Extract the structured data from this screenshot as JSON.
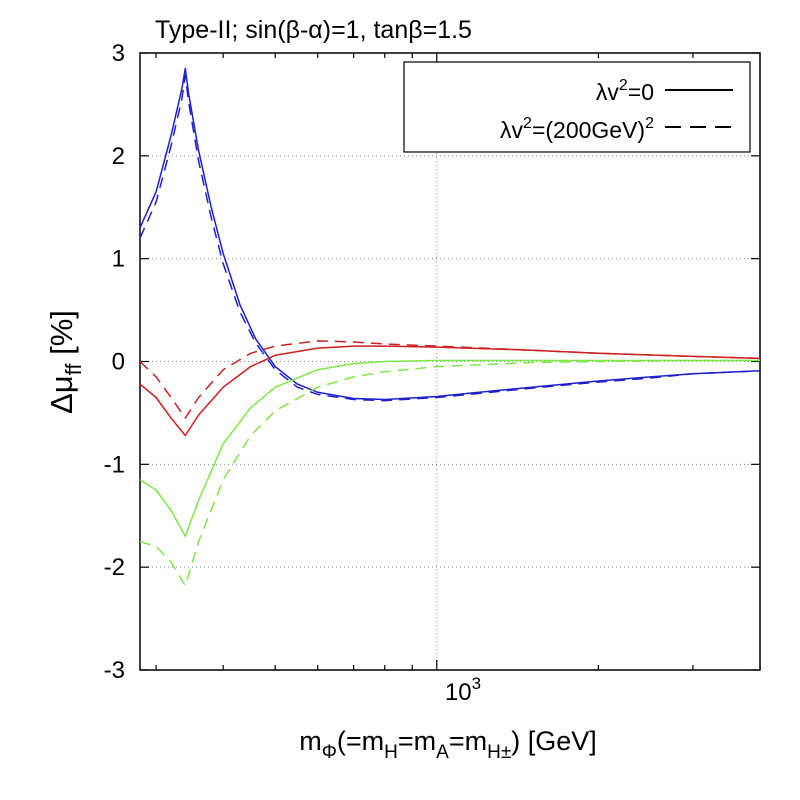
{
  "chart_data": {
    "type": "line",
    "title": "Type-II; sin(β-α)=1, tanβ=1.5",
    "xlabel": {
      "prefix": "m",
      "sub1": "Φ",
      "mid1": "(=m",
      "sub2": "H",
      "mid2": "=m",
      "sub3": "A",
      "mid3": "=m",
      "sub4": "H±",
      "suffix": ") [GeV]"
    },
    "ylabel": {
      "prefix": "Δμ",
      "sub": "ff",
      "suffix": " [%]"
    },
    "xscale": "log",
    "xlim": [
      280,
      4000
    ],
    "ylim": [
      -3,
      3
    ],
    "yticks": [
      "3",
      "2",
      "1",
      "0",
      "-1",
      "-2",
      "-3"
    ],
    "ytick_values": [
      3,
      2,
      1,
      0,
      -1,
      -2,
      -3
    ],
    "xtick": {
      "base": "10",
      "exp": "3",
      "value": 1000
    },
    "grid": true,
    "legend": {
      "position": "top-right",
      "entries": [
        {
          "base": "λv",
          "sup": "2",
          "rest": "=0",
          "sup2": "",
          "style": "solid"
        },
        {
          "base": "λv",
          "sup": "2",
          "rest": "=(200GeV)",
          "sup2": "2",
          "style": "dashed"
        }
      ]
    },
    "colors": {
      "blue": "#1f1fcc",
      "red": "#cc1f1f",
      "green": "#7ee84a",
      "grid": "#888888"
    },
    "series": [
      {
        "name": "blue λv²=0",
        "color": "blue",
        "style": "solid",
        "x": [
          280,
          300,
          320,
          335,
          340,
          345,
          360,
          380,
          400,
          430,
          460,
          500,
          550,
          600,
          700,
          800,
          1000,
          1200,
          1500,
          2000,
          2500,
          3000,
          4000
        ],
        "y": [
          1.3,
          1.65,
          2.2,
          2.65,
          2.85,
          2.6,
          2.05,
          1.5,
          1.05,
          0.55,
          0.22,
          -0.05,
          -0.22,
          -0.3,
          -0.36,
          -0.37,
          -0.34,
          -0.3,
          -0.25,
          -0.19,
          -0.15,
          -0.12,
          -0.09
        ]
      },
      {
        "name": "blue λv²=(200GeV)²",
        "color": "blue",
        "style": "dashed",
        "x": [
          280,
          300,
          320,
          335,
          340,
          345,
          360,
          380,
          400,
          430,
          460,
          500,
          550,
          600,
          700,
          800,
          1000,
          1200,
          1500,
          2000,
          2500,
          3000,
          4000
        ],
        "y": [
          1.2,
          1.55,
          2.1,
          2.55,
          2.78,
          2.52,
          1.95,
          1.4,
          0.95,
          0.48,
          0.18,
          -0.08,
          -0.25,
          -0.32,
          -0.37,
          -0.38,
          -0.35,
          -0.31,
          -0.26,
          -0.2,
          -0.16,
          -0.12,
          -0.09
        ]
      },
      {
        "name": "red λv²=0",
        "color": "red",
        "style": "solid",
        "x": [
          280,
          300,
          320,
          340,
          360,
          400,
          450,
          500,
          600,
          700,
          800,
          1000,
          1500,
          2000,
          3000,
          4000
        ],
        "y": [
          -0.22,
          -0.35,
          -0.55,
          -0.72,
          -0.52,
          -0.25,
          -0.05,
          0.06,
          0.13,
          0.15,
          0.15,
          0.14,
          0.11,
          0.08,
          0.05,
          0.03
        ]
      },
      {
        "name": "red λv²=(200GeV)²",
        "color": "red",
        "style": "dashed",
        "x": [
          280,
          300,
          320,
          340,
          360,
          400,
          450,
          500,
          600,
          700,
          800,
          1000,
          1500,
          2000,
          3000,
          4000
        ],
        "y": [
          0.0,
          -0.15,
          -0.35,
          -0.55,
          -0.35,
          -0.08,
          0.08,
          0.15,
          0.2,
          0.19,
          0.17,
          0.15,
          0.11,
          0.08,
          0.05,
          0.03
        ]
      },
      {
        "name": "green λv²=0",
        "color": "green",
        "style": "solid",
        "x": [
          280,
          300,
          320,
          340,
          360,
          400,
          450,
          500,
          600,
          700,
          800,
          1000,
          1500,
          2000,
          3000,
          4000
        ],
        "y": [
          -1.15,
          -1.25,
          -1.45,
          -1.7,
          -1.35,
          -0.8,
          -0.45,
          -0.25,
          -0.08,
          -0.02,
          0.0,
          0.01,
          0.01,
          0.01,
          0.01,
          0.01
        ]
      },
      {
        "name": "green λv²=(200GeV)²",
        "color": "green",
        "style": "dashed",
        "x": [
          280,
          300,
          320,
          340,
          360,
          400,
          450,
          500,
          600,
          700,
          800,
          1000,
          1500,
          2000,
          3000,
          4000
        ],
        "y": [
          -1.75,
          -1.8,
          -1.95,
          -2.18,
          -1.75,
          -1.15,
          -0.72,
          -0.48,
          -0.25,
          -0.15,
          -0.1,
          -0.05,
          -0.01,
          0.0,
          0.01,
          0.01
        ]
      }
    ]
  }
}
